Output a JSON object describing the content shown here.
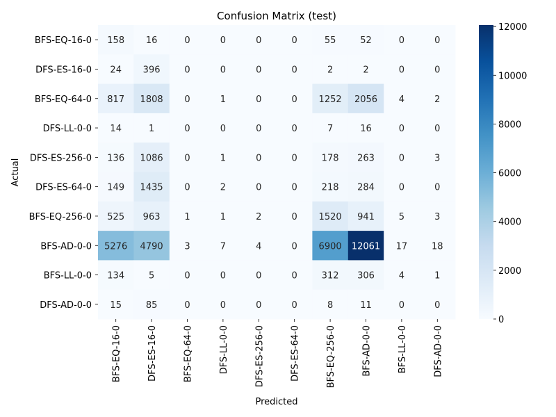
{
  "chart_data": {
    "type": "heatmap",
    "title": "Confusion Matrix (test)",
    "xlabel": "Predicted",
    "ylabel": "Actual",
    "x_categories": [
      "BFS-EQ-16-0",
      "DFS-ES-16-0",
      "BFS-EQ-64-0",
      "DFS-LL-0-0",
      "DFS-ES-256-0",
      "DFS-ES-64-0",
      "BFS-EQ-256-0",
      "BFS-AD-0-0",
      "BFS-LL-0-0",
      "DFS-AD-0-0"
    ],
    "y_categories": [
      "BFS-EQ-16-0",
      "DFS-ES-16-0",
      "BFS-EQ-64-0",
      "DFS-LL-0-0",
      "DFS-ES-256-0",
      "DFS-ES-64-0",
      "BFS-EQ-256-0",
      "BFS-AD-0-0",
      "BFS-LL-0-0",
      "DFS-AD-0-0"
    ],
    "values": [
      [
        158,
        16,
        0,
        0,
        0,
        0,
        55,
        52,
        0,
        0
      ],
      [
        24,
        396,
        0,
        0,
        0,
        0,
        2,
        2,
        0,
        0
      ],
      [
        817,
        1808,
        0,
        1,
        0,
        0,
        1252,
        2056,
        4,
        2
      ],
      [
        14,
        1,
        0,
        0,
        0,
        0,
        7,
        16,
        0,
        0
      ],
      [
        136,
        1086,
        0,
        1,
        0,
        0,
        178,
        263,
        0,
        3
      ],
      [
        149,
        1435,
        0,
        2,
        0,
        0,
        218,
        284,
        0,
        0
      ],
      [
        525,
        963,
        1,
        1,
        2,
        0,
        1520,
        941,
        5,
        3
      ],
      [
        5276,
        4790,
        3,
        7,
        4,
        0,
        6900,
        12061,
        17,
        18
      ],
      [
        134,
        5,
        0,
        0,
        0,
        0,
        312,
        306,
        4,
        1
      ],
      [
        15,
        85,
        0,
        0,
        0,
        0,
        8,
        11,
        0,
        0
      ]
    ],
    "colorscale": "Blues",
    "vmin": 0,
    "vmax": 12061,
    "colorbar_ticks": [
      0,
      2000,
      4000,
      6000,
      8000,
      10000,
      12000
    ],
    "colorbar_tick_labels": [
      "0",
      "2000",
      "4000",
      "6000",
      "8000",
      "10000",
      "12000"
    ]
  }
}
